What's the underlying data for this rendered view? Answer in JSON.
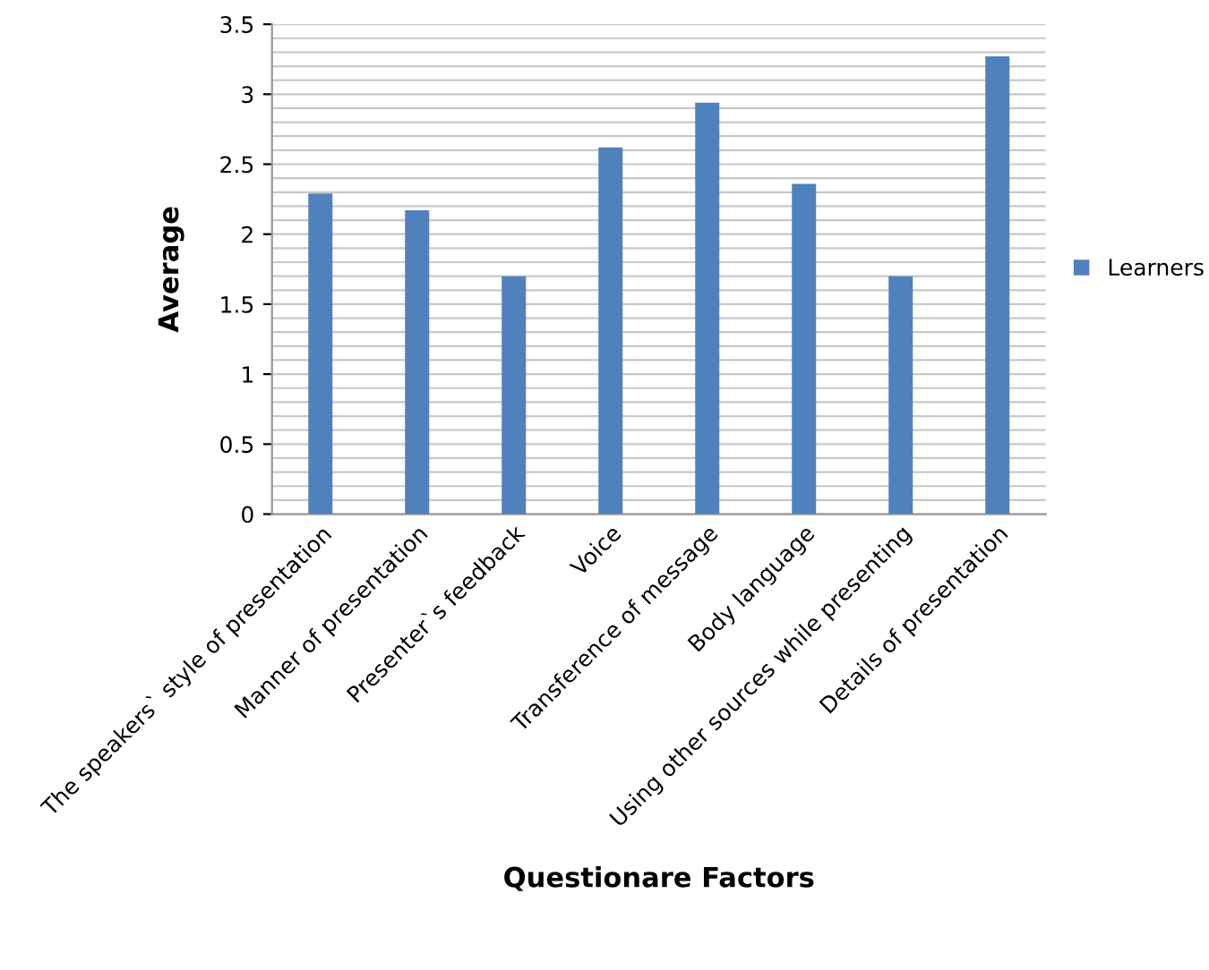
{
  "chart_data": {
    "type": "bar",
    "xlabel": "Questionare Factors",
    "ylabel": "Average",
    "categories": [
      "The speakers` style of presentation",
      "Manner of presentation",
      "Presenter`s feedback",
      "Voice",
      "Transference of message",
      "Body language",
      "Using other sources while presenting",
      "Details of presentation"
    ],
    "series": [
      {
        "name": "Learners",
        "color": "#4f81bd",
        "values": [
          2.29,
          2.17,
          1.7,
          2.62,
          2.94,
          2.36,
          1.7,
          3.27
        ]
      }
    ],
    "ylim": [
      0,
      3.5
    ],
    "yticks": [
      0,
      0.5,
      1,
      1.5,
      2,
      2.5,
      3,
      3.5
    ],
    "grid": "y",
    "legend": "right"
  }
}
